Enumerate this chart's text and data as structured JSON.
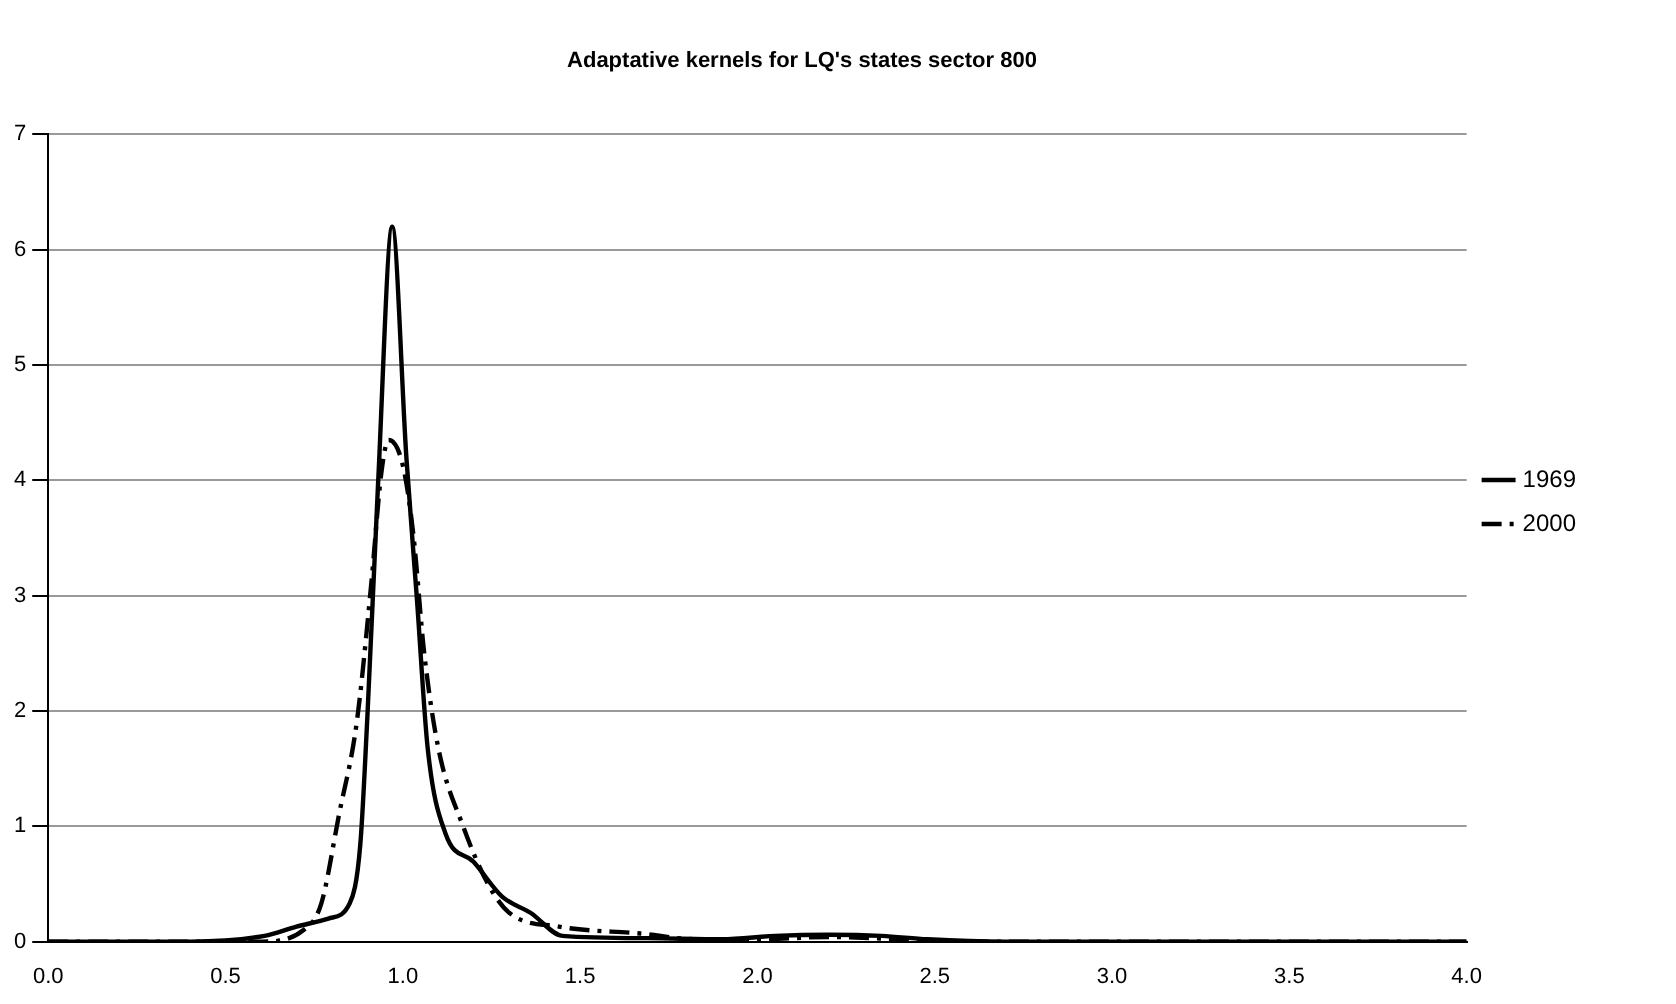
{
  "chart_data": {
    "type": "line",
    "title": "Adaptative kernels for LQ's states sector 800",
    "xlim": [
      0,
      4
    ],
    "xticks": [
      {
        "value": 0,
        "label": "0.0"
      },
      {
        "value": 0.5,
        "label": "0.5"
      },
      {
        "value": 1,
        "label": "1.0"
      },
      {
        "value": 1.5,
        "label": "1.5"
      },
      {
        "value": 2,
        "label": "2.0"
      },
      {
        "value": 2.5,
        "label": "2.5"
      },
      {
        "value": 3,
        "label": "3.0"
      },
      {
        "value": 3.5,
        "label": "3.5"
      },
      {
        "value": 4,
        "label": "4.0"
      }
    ],
    "ylim": [
      0,
      7
    ],
    "yticks": [
      0,
      1,
      2,
      3,
      4,
      5,
      6,
      7
    ],
    "grid": "y",
    "legend": "right",
    "marker": "none",
    "series": [
      {
        "name": "1969",
        "color": "#000000",
        "line_style": "solid",
        "x": [
          0,
          0.4,
          0.61,
          0.7,
          0.79,
          0.85,
          0.88,
          0.9,
          0.93,
          0.97,
          1.01,
          1.04,
          1.07,
          1.12,
          1.2,
          1.28,
          1.36,
          1.45,
          1.69,
          1.9,
          2.05,
          2.2,
          2.35,
          2.48,
          2.7,
          4
        ],
        "values": [
          0,
          0,
          0.05,
          0.13,
          0.2,
          0.33,
          0.84,
          1.95,
          3.96,
          6.2,
          4.2,
          2.96,
          1.68,
          0.94,
          0.69,
          0.39,
          0.25,
          0.05,
          0.03,
          0.02,
          0.05,
          0.06,
          0.05,
          0.02,
          0,
          0
        ]
      },
      {
        "name": "2000",
        "color": "#000000",
        "line_style": "dashed",
        "x": [
          0,
          0.6,
          0.72,
          0.77,
          0.82,
          0.87,
          0.91,
          0.94,
          0.96,
          1,
          1.03,
          1.06,
          1.1,
          1.17,
          1.24,
          1.3,
          1.44,
          1.67,
          1.83,
          2.0,
          2.2,
          2.4,
          2.6,
          4
        ],
        "values": [
          0,
          0,
          0.1,
          0.33,
          1.1,
          1.9,
          3.07,
          4.08,
          4.35,
          4.13,
          3.52,
          2.51,
          1.68,
          1,
          0.5,
          0.25,
          0.13,
          0.07,
          0.02,
          0.02,
          0.04,
          0.02,
          0,
          0
        ]
      }
    ]
  }
}
